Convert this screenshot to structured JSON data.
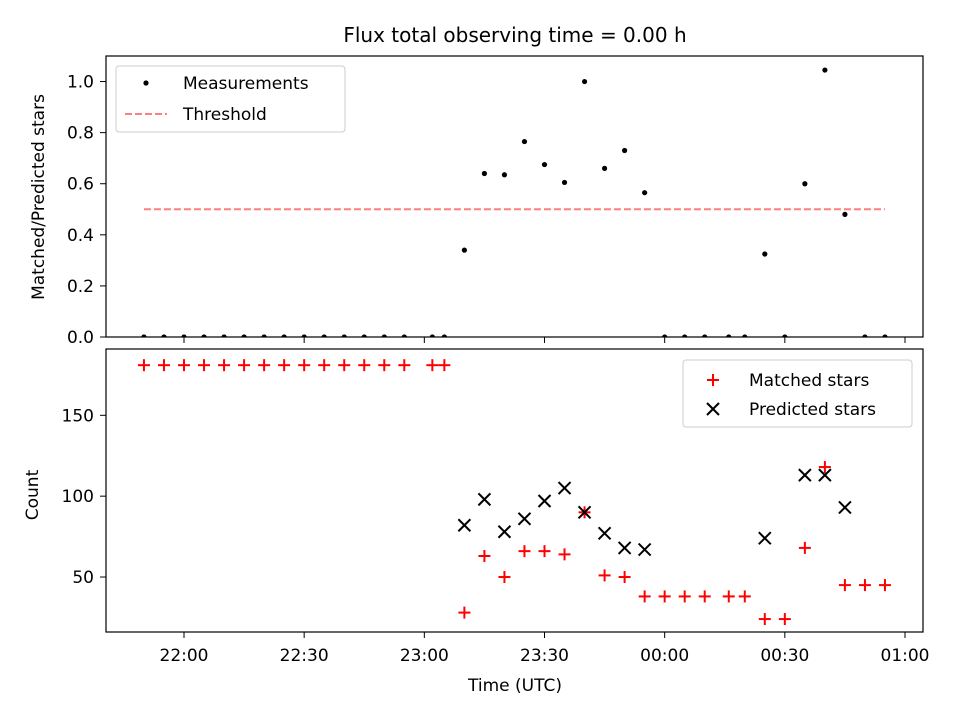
{
  "chart_data": [
    {
      "type": "scatter",
      "title": "Flux total observing time = 0.00 h",
      "xlabel": "",
      "ylabel": "Matched/Predicted stars",
      "ylim": [
        0,
        1.1
      ],
      "yticks": [
        "0.0",
        "0.2",
        "0.4",
        "0.6",
        "0.8",
        "1.0"
      ],
      "grid": false,
      "legend_position": "top-left",
      "series": [
        {
          "name": "Measurements",
          "style": "point",
          "color": "#000000",
          "x": [
            "21:50",
            "21:55",
            "22:00",
            "22:05",
            "22:10",
            "22:15",
            "22:20",
            "22:25",
            "22:30",
            "22:35",
            "22:40",
            "22:45",
            "22:50",
            "22:55",
            "23:02",
            "23:05",
            "23:10",
            "23:15",
            "23:20",
            "23:25",
            "23:30",
            "23:35",
            "23:40",
            "23:45",
            "23:50",
            "23:55",
            "00:00",
            "00:05",
            "00:10",
            "00:16",
            "00:20",
            "00:25",
            "00:30",
            "00:35",
            "00:40",
            "00:45",
            "00:50",
            "00:55"
          ],
          "y": [
            0,
            0,
            0,
            0,
            0,
            0,
            0,
            0,
            0,
            0,
            0,
            0,
            0,
            0,
            0,
            0,
            0.34,
            0.64,
            0.635,
            0.765,
            0.675,
            0.605,
            1.0,
            0.66,
            0.73,
            0.565,
            0,
            0,
            0,
            0,
            0,
            0.325,
            0,
            0.6,
            1.045,
            0.48,
            0,
            0
          ]
        },
        {
          "name": "Threshold",
          "style": "dashed-line",
          "color": "#ff7f7f",
          "x": [
            "21:50",
            "00:55"
          ],
          "y": [
            0.5,
            0.5
          ]
        }
      ]
    },
    {
      "type": "scatter",
      "title": "",
      "xlabel": "Time (UTC)",
      "ylabel": "Count",
      "ylim": [
        16,
        191
      ],
      "yticks": [
        "50",
        "100",
        "150"
      ],
      "xticks": [
        "22:00",
        "22:30",
        "23:00",
        "23:30",
        "00:00",
        "00:30",
        "01:00"
      ],
      "grid": false,
      "legend_position": "top-right",
      "series": [
        {
          "name": "Matched stars",
          "marker": "+",
          "color": "#ff0000",
          "x": [
            "21:50",
            "21:55",
            "22:00",
            "22:05",
            "22:10",
            "22:15",
            "22:20",
            "22:25",
            "22:30",
            "22:35",
            "22:40",
            "22:45",
            "22:50",
            "22:55",
            "23:02",
            "23:05",
            "23:10",
            "23:15",
            "23:20",
            "23:25",
            "23:30",
            "23:35",
            "23:40",
            "23:45",
            "23:50",
            "23:55",
            "00:00",
            "00:05",
            "00:10",
            "00:16",
            "00:20",
            "00:25",
            "00:30",
            "00:35",
            "00:40",
            "00:45",
            "00:50",
            "00:55"
          ],
          "y": [
            181,
            181,
            181,
            181,
            181,
            181,
            181,
            181,
            181,
            181,
            181,
            181,
            181,
            181,
            181,
            181,
            28,
            63,
            50,
            66,
            66,
            64,
            90,
            51,
            50,
            38,
            38,
            38,
            38,
            38,
            38,
            24,
            24,
            68,
            118,
            45,
            45,
            45
          ]
        },
        {
          "name": "Predicted stars",
          "marker": "x",
          "color": "#000000",
          "x": [
            "23:10",
            "23:15",
            "23:20",
            "23:25",
            "23:30",
            "23:35",
            "23:40",
            "23:45",
            "23:50",
            "23:55",
            "00:25",
            "00:35",
            "00:40",
            "00:45"
          ],
          "y": [
            82,
            98,
            78,
            86,
            97,
            105,
            90,
            77,
            68,
            67,
            74,
            113,
            113,
            93
          ]
        }
      ]
    }
  ]
}
